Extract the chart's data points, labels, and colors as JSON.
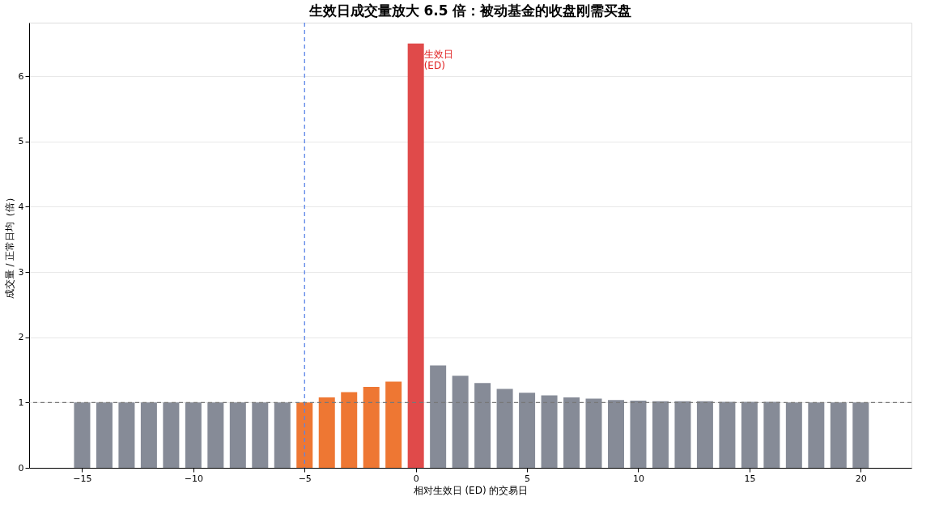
{
  "chart_data": {
    "type": "bar",
    "title": "生效日成交量放大 6.5 倍：被动基金的收盘刚需买盘",
    "xlabel": "相对生效日 (ED) 的交易日",
    "ylabel": "成交量 / 正常日均（倍）",
    "x": [
      -15,
      -14,
      -13,
      -12,
      -11,
      -10,
      -9,
      -8,
      -7,
      -6,
      -5,
      -4,
      -3,
      -2,
      -1,
      0,
      1,
      2,
      3,
      4,
      5,
      6,
      7,
      8,
      9,
      10,
      11,
      12,
      13,
      14,
      15,
      16,
      17,
      18,
      19,
      20
    ],
    "values": [
      1.0,
      1.0,
      1.0,
      1.0,
      1.0,
      1.0,
      1.0,
      1.0,
      1.0,
      1.0,
      1.0,
      1.08,
      1.16,
      1.24,
      1.32,
      6.5,
      1.57,
      1.41,
      1.3,
      1.21,
      1.15,
      1.11,
      1.08,
      1.06,
      1.04,
      1.03,
      1.02,
      1.02,
      1.02,
      1.01,
      1.01,
      1.01,
      1.0,
      1.0,
      1.0,
      1.0
    ],
    "colors": [
      "#868b97",
      "#868b97",
      "#868b97",
      "#868b97",
      "#868b97",
      "#868b97",
      "#868b97",
      "#868b97",
      "#868b97",
      "#868b97",
      "#ee7733",
      "#ee7733",
      "#ee7733",
      "#ee7733",
      "#ee7733",
      "#e04a4a",
      "#868b97",
      "#868b97",
      "#868b97",
      "#868b97",
      "#868b97",
      "#868b97",
      "#868b97",
      "#868b97",
      "#868b97",
      "#868b97",
      "#868b97",
      "#868b97",
      "#868b97",
      "#868b97",
      "#868b97",
      "#868b97",
      "#868b97",
      "#868b97",
      "#868b97",
      "#868b97"
    ],
    "xlim": [
      -17.2,
      22.1
    ],
    "ylim": [
      0,
      6.82
    ],
    "xticks": [
      {
        "value": -15,
        "label": "−15"
      },
      {
        "value": -10,
        "label": "−10"
      },
      {
        "value": -5,
        "label": "−5"
      },
      0,
      5,
      10,
      15,
      20
    ],
    "yticks": [
      0,
      1,
      2,
      3,
      4,
      5,
      6
    ],
    "grid": "y",
    "ref_lines": [
      {
        "axis": "x",
        "value": -5,
        "color": "#5b84e8",
        "line_style": "dashed"
      },
      {
        "axis": "y",
        "value": 1,
        "color": "#777777",
        "line_style": "dashed"
      }
    ],
    "annotations": [
      {
        "text": "生效日\n(ED)",
        "x": 0,
        "y": 6.5
      }
    ]
  }
}
